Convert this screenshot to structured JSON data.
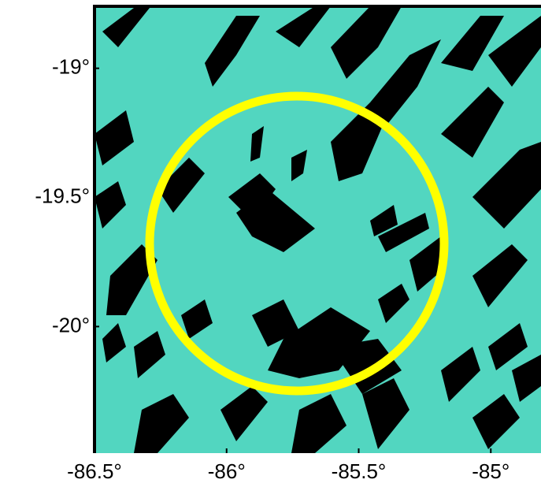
{
  "chart_data": {
    "type": "map",
    "xlim": [
      -86.5,
      -84.81
    ],
    "ylim": [
      -20.49,
      -18.76
    ],
    "xticks": [
      {
        "value": -86.5,
        "label": "-86.5°"
      },
      {
        "value": -86,
        "label": "-86°"
      },
      {
        "value": -85.5,
        "label": "-85.5°"
      },
      {
        "value": -85,
        "label": "-85°"
      }
    ],
    "yticks": [
      {
        "value": -19,
        "label": "-19°"
      },
      {
        "value": -19.5,
        "label": "-19.5°"
      },
      {
        "value": -20,
        "label": "-20°"
      }
    ]
  }
}
